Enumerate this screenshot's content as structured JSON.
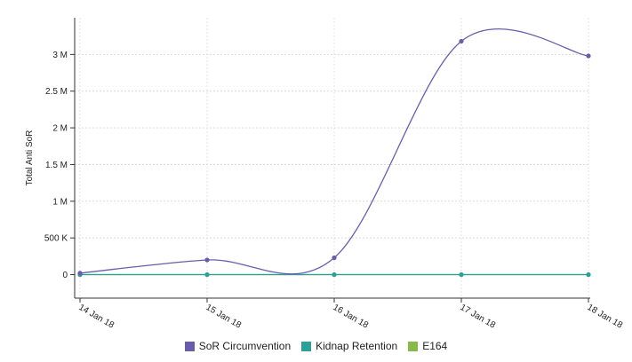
{
  "chart_data": {
    "type": "line",
    "ylabel": "Total Anti SoR",
    "x": [
      "14 Jan 18",
      "15 Jan 18",
      "16 Jan 18",
      "17 Jan 18",
      "18 Jan 18"
    ],
    "y_ticks": [
      {
        "value": 0,
        "label": "0"
      },
      {
        "value": 500000,
        "label": "500 K"
      },
      {
        "value": 1000000,
        "label": "1 M"
      },
      {
        "value": 1500000,
        "label": "1.5 M"
      },
      {
        "value": 2000000,
        "label": "2 M"
      },
      {
        "value": 2500000,
        "label": "2.5 M"
      },
      {
        "value": 3000000,
        "label": "3 M"
      }
    ],
    "ylim": [
      -320000,
      3500000
    ],
    "grid": true,
    "legend_position": "bottom",
    "series": [
      {
        "name": "SoR Circumvention",
        "color": "#6a5cad",
        "values": [
          20000,
          200000,
          230000,
          3180000,
          2980000
        ]
      },
      {
        "name": "Kidnap Retention",
        "color": "#2aa198",
        "values": [
          0,
          0,
          0,
          0,
          0
        ]
      },
      {
        "name": "E164",
        "color": "#86bb4a",
        "values": [
          0,
          0,
          0,
          0,
          0
        ]
      }
    ]
  }
}
